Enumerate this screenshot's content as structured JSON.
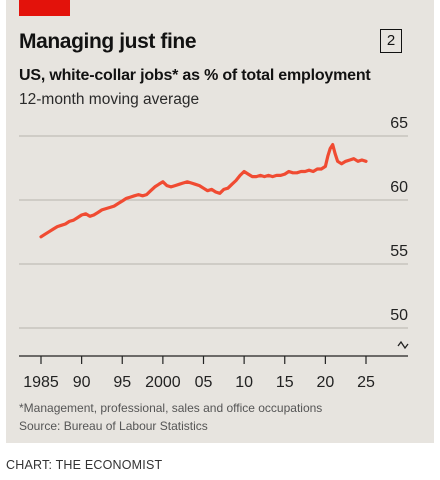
{
  "header": {
    "title": "Managing just fine",
    "badge": "2",
    "subtitle": "US, white-collar jobs* as % of total employment",
    "subtitle2": "12-month moving average"
  },
  "footer": {
    "footnote": "*Management, professional, sales and office occupations",
    "source": "Source: Bureau of Labour Statistics",
    "credit": "CHART: THE ECONOMIST"
  },
  "colors": {
    "accent": "#e3120b",
    "line": "#f04b32",
    "grid": "#b7b3ad",
    "background": "#e7e4df"
  },
  "chart_data": {
    "type": "line",
    "title": "Managing just fine",
    "subtitle": "US, white-collar jobs* as % of total employment",
    "ylim": [
      48,
      65
    ],
    "y_ticks": [
      65,
      60,
      55,
      50
    ],
    "y_axis_break": true,
    "x_range": [
      1985,
      2025
    ],
    "x_ticks": [
      {
        "value": 1985,
        "label": "1985"
      },
      {
        "value": 1990,
        "label": "90"
      },
      {
        "value": 1995,
        "label": "95"
      },
      {
        "value": 2000,
        "label": "2000"
      },
      {
        "value": 2005,
        "label": "05"
      },
      {
        "value": 2010,
        "label": "10"
      },
      {
        "value": 2015,
        "label": "15"
      },
      {
        "value": 2020,
        "label": "20"
      },
      {
        "value": 2025,
        "label": "25"
      }
    ],
    "grid": true,
    "series": [
      {
        "x": [
          1985.0,
          1985.5,
          1986.0,
          1986.5,
          1987.0,
          1987.5,
          1988.0,
          1988.5,
          1989.0,
          1989.5,
          1990.0,
          1990.5,
          1991.0,
          1991.5,
          1992.0,
          1992.5,
          1993.0,
          1993.5,
          1994.0,
          1994.5,
          1995.0,
          1995.5,
          1996.0,
          1996.5,
          1997.0,
          1997.5,
          1998.0,
          1998.5,
          1999.0,
          1999.5,
          2000.0,
          2000.5,
          2001.0,
          2001.5,
          2002.0,
          2002.5,
          2003.0,
          2003.5,
          2004.0,
          2004.5,
          2005.0,
          2005.5,
          2006.0,
          2006.5,
          2007.0,
          2007.5,
          2008.0,
          2008.5,
          2009.0,
          2009.5,
          2010.0,
          2010.5,
          2011.0,
          2011.5,
          2012.0,
          2012.5,
          2013.0,
          2013.5,
          2014.0,
          2014.5,
          2015.0,
          2015.5,
          2016.0,
          2016.5,
          2017.0,
          2017.5,
          2018.0,
          2018.5,
          2019.0,
          2019.5,
          2020.0,
          2020.3,
          2020.6,
          2020.9,
          2021.2,
          2021.5,
          2022.0,
          2022.5,
          2023.0,
          2023.5,
          2024.0,
          2024.5,
          2025.0
        ],
        "values": [
          56.5,
          56.7,
          56.9,
          57.1,
          57.3,
          57.4,
          57.5,
          57.7,
          57.8,
          58.0,
          58.2,
          58.3,
          58.1,
          58.2,
          58.4,
          58.6,
          58.7,
          58.8,
          58.9,
          59.1,
          59.3,
          59.5,
          59.6,
          59.7,
          59.8,
          59.7,
          59.8,
          60.1,
          60.4,
          60.6,
          60.8,
          60.5,
          60.4,
          60.5,
          60.6,
          60.7,
          60.8,
          60.7,
          60.6,
          60.5,
          60.3,
          60.1,
          60.2,
          60.0,
          59.9,
          60.2,
          60.3,
          60.6,
          60.9,
          61.3,
          61.6,
          61.4,
          61.2,
          61.2,
          61.3,
          61.2,
          61.3,
          61.2,
          61.3,
          61.3,
          61.4,
          61.6,
          61.5,
          61.5,
          61.6,
          61.6,
          61.7,
          61.6,
          61.8,
          61.8,
          62.0,
          62.8,
          63.4,
          63.7,
          63.0,
          62.4,
          62.2,
          62.4,
          62.5,
          62.6,
          62.4,
          62.5,
          62.4
        ]
      }
    ]
  }
}
